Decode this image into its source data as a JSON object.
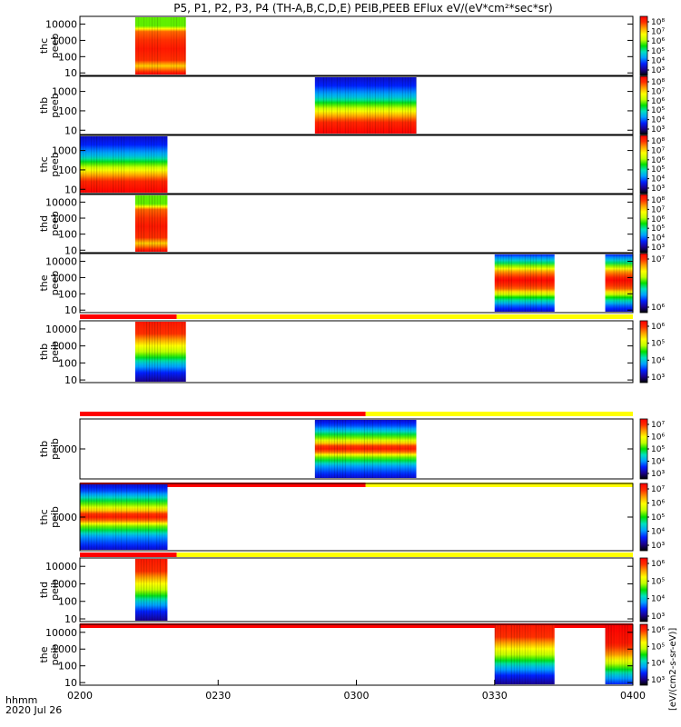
{
  "chart_data": {
    "type": "heatmap",
    "title": "P5, P1, P2, P3, P4 (TH-A,B,C,D,E) PEIB,PEEB EFlux eV/(eV*cm²*sec*sr)",
    "title_suffix": "(4",
    "time_axis": {
      "ticks": [
        "0200",
        "0230",
        "0300",
        "0330",
        "0400"
      ],
      "tick_minutes": [
        0,
        30,
        60,
        90,
        120
      ],
      "range_minutes": [
        0,
        120
      ],
      "unit_label": "hhmm",
      "date_label": "2020 Jul 26"
    },
    "colorbar_label": "[eV/(cm²-s-sr-eV)] / eV/(eV*cm²*sec*sr)",
    "colorbar_label_lower": "[eV/(cm2-s-sr-eV)]",
    "colors": {
      "bar_red": "#ff0000",
      "bar_yellow": "#ffff00",
      "ramp": [
        "#000000",
        "#1a0090",
        "#0020ff",
        "#00a0ff",
        "#00e0c0",
        "#00e000",
        "#c0ff00",
        "#ffff00",
        "#ffa000",
        "#ff3000",
        "#ff0000"
      ]
    },
    "panels": [
      {
        "probe": "thc",
        "instrument": "peeb",
        "ylabel": "thc peeb",
        "yticks": [
          "10000",
          "1000",
          "100",
          "10"
        ],
        "ytick_values": [
          10000,
          1000,
          100,
          10
        ],
        "yrange": [
          7,
          30000
        ],
        "ylog": true,
        "data_blocks": [
          {
            "start": 12,
            "end": 23,
            "profile": "electron_hot"
          }
        ],
        "colorbar_ticks": [
          "10⁸",
          "10⁷",
          "10⁶",
          "10⁵",
          "10⁴",
          "10³"
        ],
        "colorbar_exps": [
          8,
          7,
          6,
          5,
          4,
          3
        ]
      },
      {
        "probe": "thb",
        "instrument": "peeb",
        "ylabel": "thb peeb",
        "yticks": [
          "1000",
          "100",
          "10"
        ],
        "ytick_values": [
          1000,
          100,
          10
        ],
        "yrange": [
          6,
          6000
        ],
        "ylog": true,
        "data_blocks": [
          {
            "start": 51,
            "end": 73,
            "profile": "electron_cold"
          }
        ],
        "colorbar_ticks": [
          "10⁸",
          "10⁷",
          "10⁶",
          "10⁵",
          "10⁴",
          "10³"
        ],
        "colorbar_exps": [
          8,
          7,
          6,
          5,
          4,
          3
        ]
      },
      {
        "probe": "thc",
        "instrument": "peeb",
        "ylabel": "thc peeb",
        "yticks": [
          "1000",
          "100",
          "10"
        ],
        "ytick_values": [
          1000,
          100,
          10
        ],
        "yrange": [
          6,
          6000
        ],
        "ylog": true,
        "data_blocks": [
          {
            "start": 0,
            "end": 19,
            "profile": "electron_cold"
          }
        ],
        "colorbar_ticks": [
          "10⁸",
          "10⁷",
          "10⁶",
          "10⁵",
          "10⁴",
          "10³"
        ],
        "colorbar_exps": [
          8,
          7,
          6,
          5,
          4,
          3
        ]
      },
      {
        "probe": "thd",
        "instrument": "peeb",
        "ylabel": "thd peeb",
        "yticks": [
          "10000",
          "1000",
          "100",
          "10"
        ],
        "ytick_values": [
          10000,
          1000,
          100,
          10
        ],
        "yrange": [
          7,
          30000
        ],
        "ylog": true,
        "data_blocks": [
          {
            "start": 12,
            "end": 19,
            "profile": "electron_hot"
          }
        ],
        "colorbar_ticks": [
          "10⁸",
          "10⁷",
          "10⁶",
          "10⁵",
          "10⁴",
          "10³"
        ],
        "colorbar_exps": [
          8,
          7,
          6,
          5,
          4,
          3
        ]
      },
      {
        "probe": "the",
        "instrument": "peeb",
        "ylabel": "the peeb",
        "yticks": [
          "10000",
          "1000",
          "100",
          "10"
        ],
        "ytick_values": [
          10000,
          1000,
          100,
          10
        ],
        "yrange": [
          7,
          30000
        ],
        "ylog": true,
        "data_blocks": [
          {
            "start": 90,
            "end": 103,
            "profile": "electron_mid"
          },
          {
            "start": 114,
            "end": 120,
            "profile": "electron_mid"
          }
        ],
        "colorbar_ticks": [
          "10⁷",
          "10⁶"
        ],
        "colorbar_exps": [
          7,
          6
        ]
      },
      {
        "probe": "thb",
        "instrument": "peib",
        "ylabel": "thb peib",
        "yticks": [
          "10000",
          "1000",
          "100",
          "10"
        ],
        "ytick_values": [
          10000,
          1000,
          100,
          10
        ],
        "yrange": [
          7,
          30000
        ],
        "ylog": true,
        "data_blocks": [
          {
            "start": 12,
            "end": 23,
            "profile": "ion"
          }
        ],
        "mode_bar": [
          {
            "start": 0,
            "end": 21,
            "color": "red"
          },
          {
            "start": 21,
            "end": 120,
            "color": "yellow"
          }
        ],
        "colorbar_ticks": [
          "10⁶",
          "10⁵",
          "10⁴",
          "10³"
        ],
        "colorbar_exps": [
          6,
          5,
          4,
          3
        ]
      },
      {
        "probe": "thb",
        "instrument": "peib",
        "ylabel": "thb peib",
        "yticks": [
          "1000"
        ],
        "ytick_values": [
          1000
        ],
        "yrange": [
          200,
          5000
        ],
        "ylog": true,
        "data_blocks": [
          {
            "start": 51,
            "end": 73,
            "profile": "ion_narrow"
          }
        ],
        "mode_bar": [
          {
            "start": 0,
            "end": 62,
            "color": "red"
          },
          {
            "start": 62,
            "end": 120,
            "color": "yellow"
          }
        ],
        "colorbar_ticks": [
          "10⁷",
          "10⁶",
          "10⁵",
          "10⁴",
          "10³"
        ],
        "colorbar_exps": [
          7,
          6,
          5,
          4,
          3
        ]
      },
      {
        "probe": "thc",
        "instrument": "peib",
        "ylabel": "thc peib",
        "yticks": [
          "1000"
        ],
        "ytick_values": [
          1000
        ],
        "yrange": [
          200,
          5000
        ],
        "ylog": true,
        "data_blocks": [
          {
            "start": 0,
            "end": 19,
            "profile": "ion_narrow"
          }
        ],
        "mode_bar": [
          {
            "start": 0,
            "end": 62,
            "color": "red"
          },
          {
            "start": 62,
            "end": 120,
            "color": "yellow"
          }
        ],
        "colorbar_ticks": [
          "10⁷",
          "10⁶",
          "10⁵",
          "10⁴",
          "10³"
        ],
        "colorbar_exps": [
          7,
          6,
          5,
          4,
          3
        ]
      },
      {
        "probe": "thd",
        "instrument": "peib",
        "ylabel": "thd peib",
        "yticks": [
          "10000",
          "1000",
          "100",
          "10"
        ],
        "ytick_values": [
          10000,
          1000,
          100,
          10
        ],
        "yrange": [
          7,
          30000
        ],
        "ylog": true,
        "data_blocks": [
          {
            "start": 12,
            "end": 19,
            "profile": "ion"
          }
        ],
        "mode_bar": [
          {
            "start": 0,
            "end": 21,
            "color": "red"
          },
          {
            "start": 21,
            "end": 120,
            "color": "yellow"
          }
        ],
        "colorbar_ticks": [
          "10⁶",
          "10⁵",
          "10⁴",
          "10³"
        ],
        "colorbar_exps": [
          6,
          5,
          4,
          3
        ]
      },
      {
        "probe": "the",
        "instrument": "peib",
        "ylabel": "the peib",
        "yticks": [
          "10000",
          "1000",
          "100",
          "10"
        ],
        "ytick_values": [
          10000,
          1000,
          100,
          10
        ],
        "yrange": [
          7,
          30000
        ],
        "ylog": true,
        "data_blocks": [
          {
            "start": 90,
            "end": 103,
            "profile": "ion"
          },
          {
            "start": 114,
            "end": 120,
            "profile": "ion_hot"
          }
        ],
        "mode_bar": [
          {
            "start": 0,
            "end": 120,
            "color": "red"
          }
        ],
        "colorbar_ticks": [
          "10⁶",
          "10⁵",
          "10⁴",
          "10³"
        ],
        "colorbar_exps": [
          6,
          5,
          4,
          3
        ]
      }
    ]
  }
}
